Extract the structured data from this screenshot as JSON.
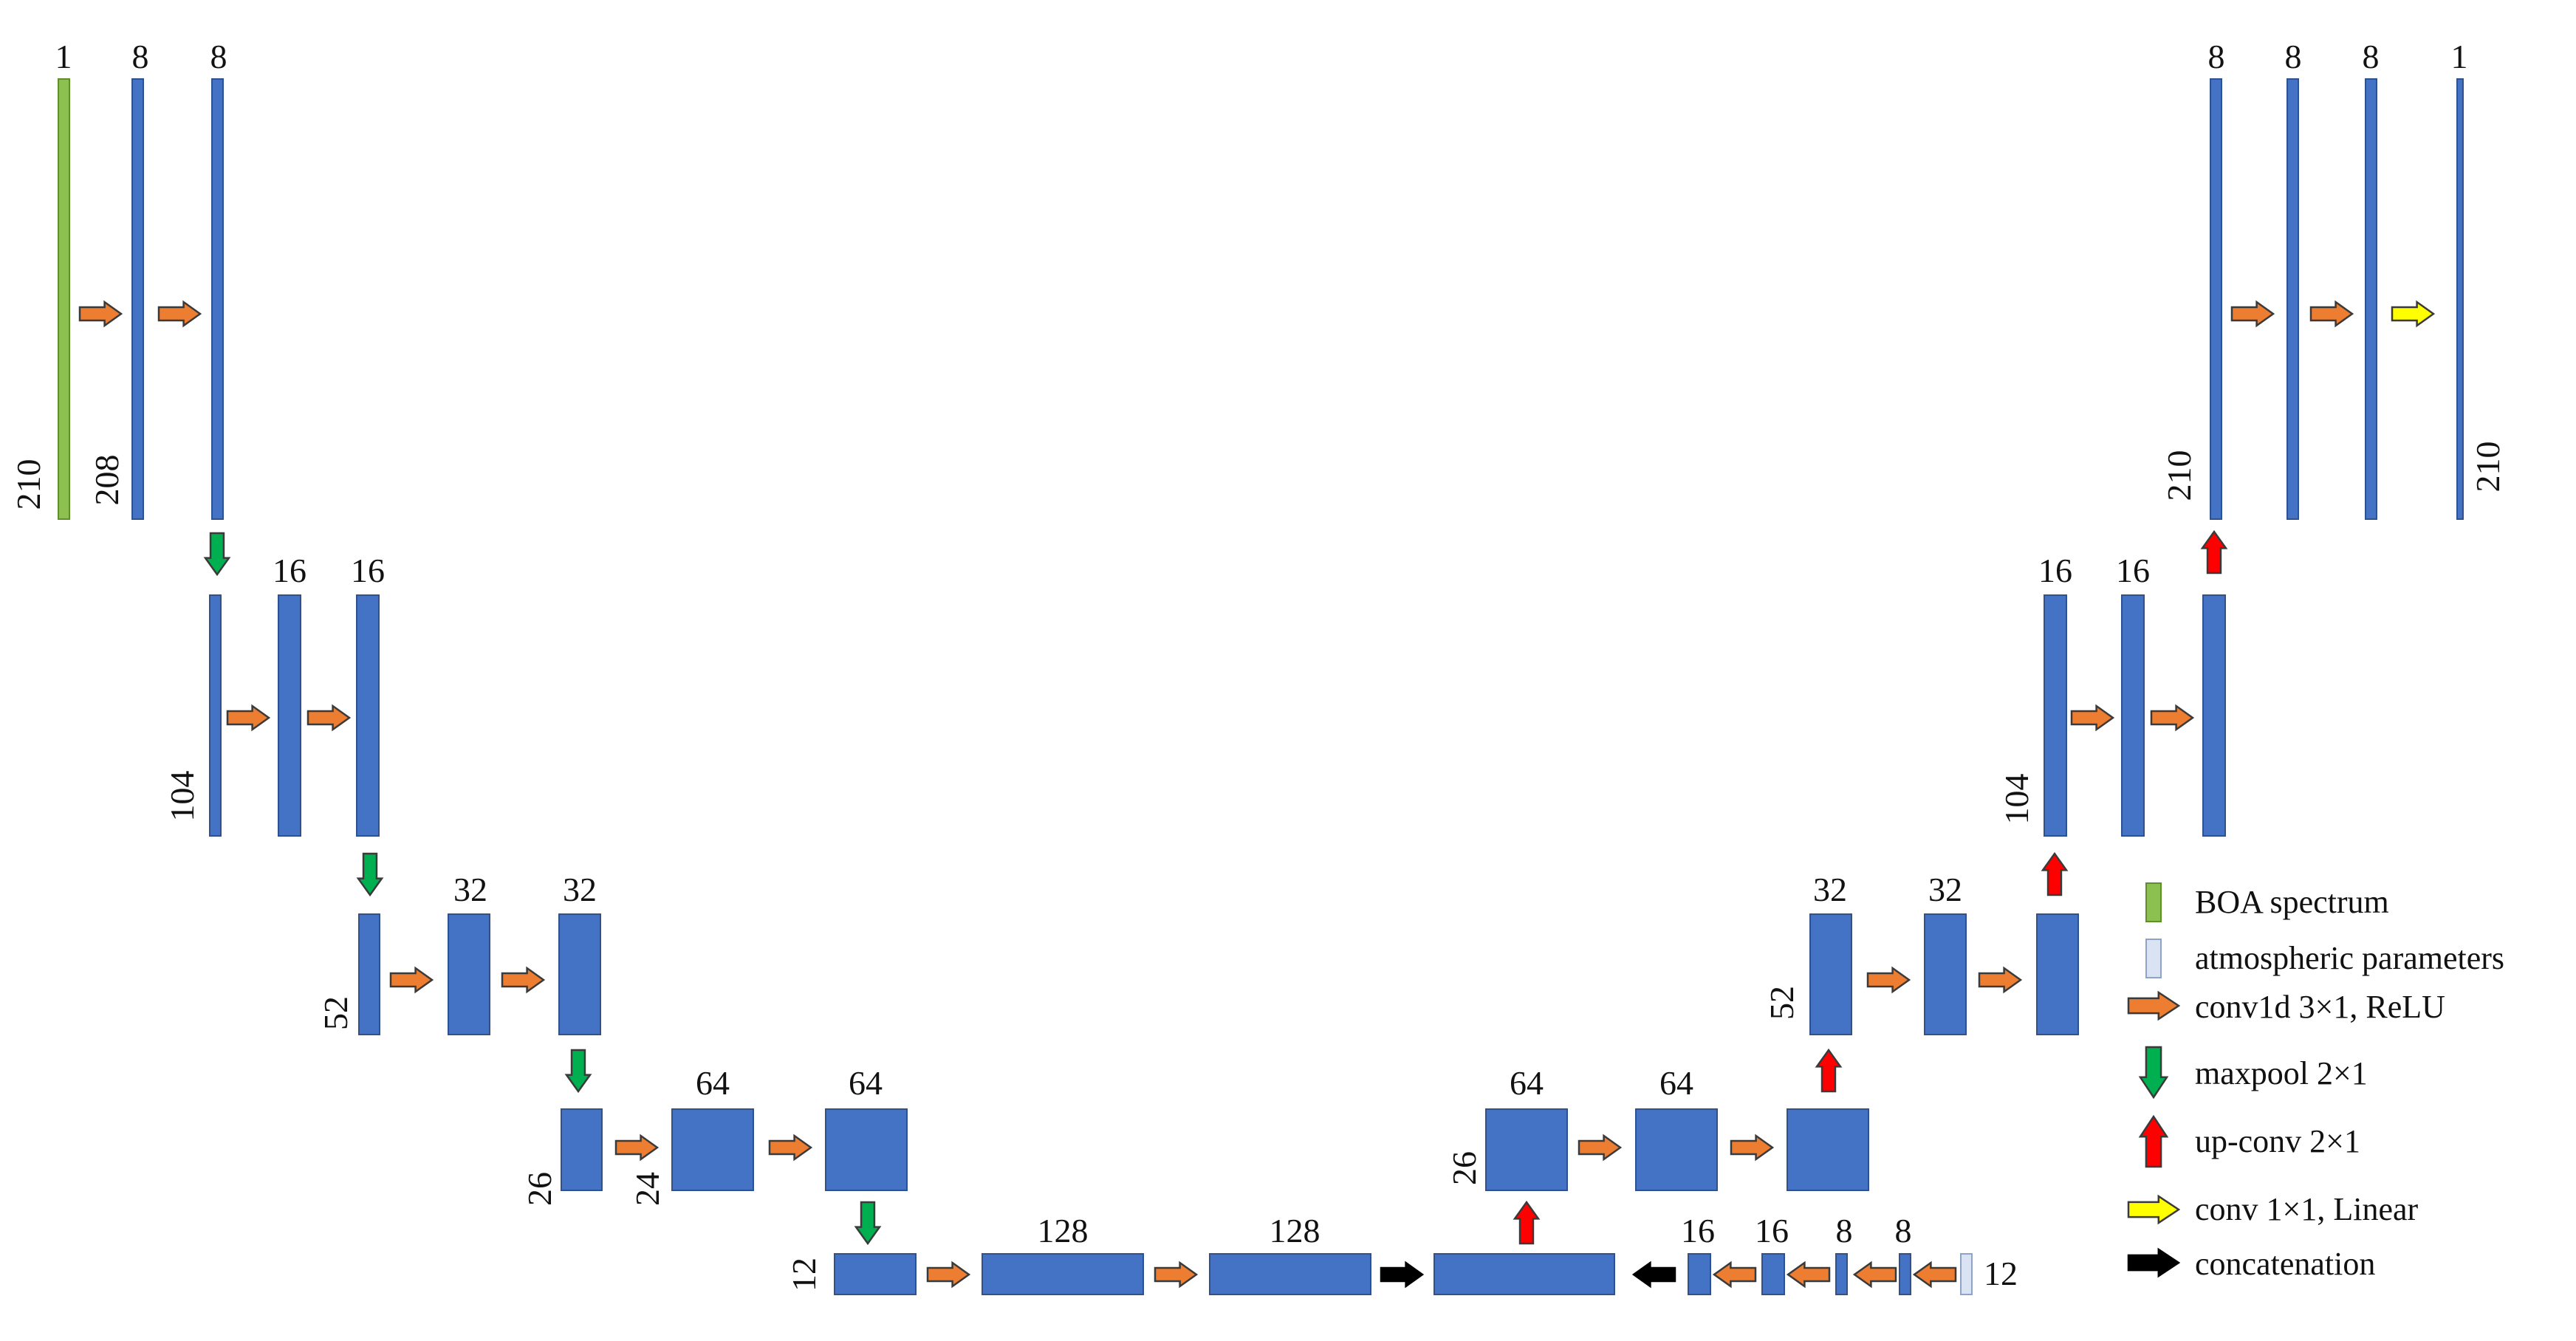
{
  "colors": {
    "block": "#4472C4",
    "block_edge": "#2F528F",
    "boa": "#8CC152",
    "boa_edge": "#5E8F2A",
    "atm": "#DAE3F3",
    "atm_edge": "#8FA3C8",
    "conv": "#ED7D31",
    "maxpool": "#00B050",
    "upconv": "#FF0000",
    "linear": "#FFFF00",
    "concat": "#000000"
  },
  "labels": {
    "c_in": "1",
    "c_l1a": "8",
    "c_l1b": "8",
    "c_out_a": "8",
    "c_out_b": "8",
    "c_out_c": "8",
    "c_out": "1",
    "c_l2a": "16",
    "c_l2b": "16",
    "c_r2a": "16",
    "c_r2b": "16",
    "c_l3a": "32",
    "c_l3b": "32",
    "c_r3a": "32",
    "c_r3b": "32",
    "c_l4a": "64",
    "c_l4b": "64",
    "c_r4a": "64",
    "c_r4b": "64",
    "c_b1": "128",
    "c_b2": "128",
    "c_p1": "16",
    "c_p2": "16",
    "c_p3": "8",
    "c_p4": "8",
    "len_in": "210",
    "len_l1": "208",
    "len_out_left": "210",
    "len_out_right": "210",
    "len_l2": "104",
    "len_r2": "104",
    "len_l3": "52",
    "len_r3": "52",
    "len_l4a": "26",
    "len_l4b": "24",
    "len_r4": "26",
    "len_b": "12",
    "len_atm": "12"
  },
  "legend": {
    "boa": "BOA spectrum",
    "atm": "atmospheric parameters",
    "conv": "conv1d 3×1, ReLU",
    "maxpool": "maxpool 2×1",
    "upconv": "up-conv 2×1",
    "linear": "conv 1×1, Linear",
    "concat": "concatenation"
  }
}
